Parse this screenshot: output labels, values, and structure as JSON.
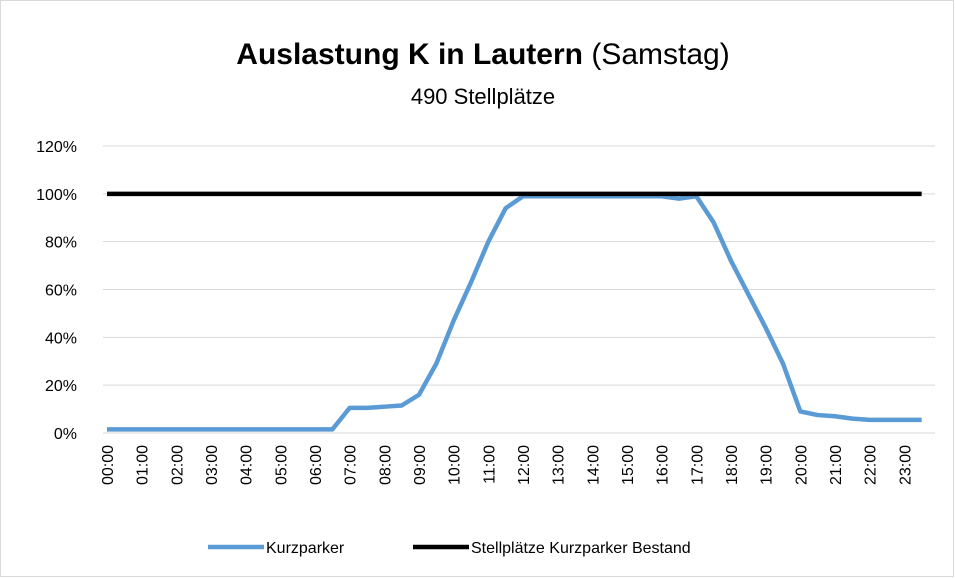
{
  "chart_data": {
    "type": "line",
    "title": [
      "Auslastung K in Lautern",
      "(Samstag)"
    ],
    "subtitle": "490 Stellplätze",
    "categories": [
      "00:00",
      null,
      "01:00",
      null,
      "02:00",
      null,
      "03:00",
      null,
      "04:00",
      null,
      "05:00",
      null,
      "06:00",
      null,
      "07:00",
      null,
      "08:00",
      null,
      "09:00",
      null,
      "10:00",
      null,
      "11:00",
      null,
      "12:00",
      null,
      "13:00",
      null,
      "14:00",
      null,
      "15:00",
      null,
      "16:00",
      null,
      "17:00",
      null,
      "18:00",
      null,
      "19:00",
      null,
      "20:00",
      null,
      "21:00",
      null,
      "22:00",
      null,
      "23:00",
      null
    ],
    "series": [
      {
        "name": "Kurzparker",
        "color": "#5b9bd5",
        "values": [
          1.5,
          1.5,
          1.5,
          1.5,
          1.5,
          1.5,
          1.5,
          1.5,
          1.5,
          1.5,
          1.5,
          1.5,
          1.5,
          1.5,
          10.5,
          10.5,
          11,
          11.5,
          16,
          29,
          47,
          63,
          80,
          94,
          99,
          99,
          99,
          99,
          99,
          99,
          99,
          99,
          99,
          98,
          99,
          88,
          72,
          58,
          44,
          29,
          9,
          7.5,
          7,
          6,
          5.5,
          5.5,
          5.5,
          5.5
        ]
      },
      {
        "name": "Stellplätze Kurzparker Bestand",
        "color": "#000000",
        "values": [
          100,
          100,
          100,
          100,
          100,
          100,
          100,
          100,
          100,
          100,
          100,
          100,
          100,
          100,
          100,
          100,
          100,
          100,
          100,
          100,
          100,
          100,
          100,
          100,
          100,
          100,
          100,
          100,
          100,
          100,
          100,
          100,
          100,
          100,
          100,
          100,
          100,
          100,
          100,
          100,
          100,
          100,
          100,
          100,
          100,
          100,
          100,
          100
        ]
      }
    ],
    "ylim": [
      0,
      120
    ],
    "yticks": [
      {
        "value": 0,
        "label": "0%"
      },
      {
        "value": 20,
        "label": "20%"
      },
      {
        "value": 40,
        "label": "40%"
      },
      {
        "value": 60,
        "label": "60%"
      },
      {
        "value": 80,
        "label": "80%"
      },
      {
        "value": 100,
        "label": "100%"
      },
      {
        "value": 120,
        "label": "120%"
      }
    ],
    "grid": true,
    "legend": "bottom"
  }
}
